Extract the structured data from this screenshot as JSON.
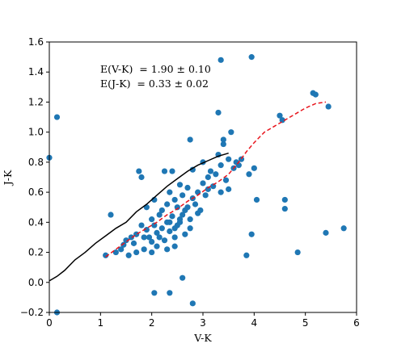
{
  "chart_data": {
    "type": "scatter",
    "xlabel": "V-K",
    "ylabel": "J-K",
    "xlim": [
      0,
      6
    ],
    "ylim": [
      -0.2,
      1.6
    ],
    "xticks": [
      "0",
      "1",
      "2",
      "3",
      "4",
      "5",
      "6"
    ],
    "yticks": [
      "−0.2",
      "0.0",
      "0.2",
      "0.4",
      "0.6",
      "0.8",
      "1.0",
      "1.2",
      "1.4",
      "1.6"
    ],
    "grid": false,
    "annotations": [
      "E(V-K)  = 1.90 ± 0.10",
      "E(J-K)  = 0.33 ± 0.02"
    ],
    "colors": {
      "points": "#1f77b4",
      "solid_line": "#000000",
      "dashed_line": "#e8141c"
    },
    "series": [
      {
        "kind": "points",
        "marker": "circle",
        "points": [
          [
            0.0,
            0.83
          ],
          [
            0.15,
            1.1
          ],
          [
            0.15,
            -0.2
          ],
          [
            1.2,
            0.45
          ],
          [
            1.1,
            0.18
          ],
          [
            1.3,
            0.2
          ],
          [
            1.4,
            0.22
          ],
          [
            1.45,
            0.25
          ],
          [
            1.5,
            0.28
          ],
          [
            1.55,
            0.18
          ],
          [
            1.6,
            0.3
          ],
          [
            1.65,
            0.26
          ],
          [
            1.7,
            0.32
          ],
          [
            1.7,
            0.2
          ],
          [
            1.75,
            0.74
          ],
          [
            1.8,
            0.7
          ],
          [
            1.8,
            0.38
          ],
          [
            1.85,
            0.22
          ],
          [
            1.9,
            0.5
          ],
          [
            1.9,
            0.35
          ],
          [
            1.95,
            0.3
          ],
          [
            2.0,
            0.42
          ],
          [
            2.0,
            0.27
          ],
          [
            2.05,
            0.55
          ],
          [
            2.05,
            0.38
          ],
          [
            2.1,
            0.33
          ],
          [
            2.1,
            0.24
          ],
          [
            2.15,
            0.45
          ],
          [
            2.15,
            0.3
          ],
          [
            2.2,
            0.48
          ],
          [
            2.2,
            0.36
          ],
          [
            2.25,
            0.74
          ],
          [
            2.25,
            0.28
          ],
          [
            2.3,
            0.52
          ],
          [
            2.3,
            0.4
          ],
          [
            2.35,
            0.34
          ],
          [
            2.35,
            0.6
          ],
          [
            2.4,
            0.74
          ],
          [
            2.4,
            0.44
          ],
          [
            2.45,
            0.3
          ],
          [
            2.45,
            0.55
          ],
          [
            2.5,
            0.5
          ],
          [
            2.5,
            0.38
          ],
          [
            2.55,
            0.65
          ],
          [
            2.55,
            0.42
          ],
          [
            2.6,
            0.45
          ],
          [
            2.6,
            0.58
          ],
          [
            2.65,
            0.32
          ],
          [
            2.7,
            0.63
          ],
          [
            2.7,
            0.5
          ],
          [
            2.75,
            0.95
          ],
          [
            2.75,
            0.42
          ],
          [
            2.8,
            0.56
          ],
          [
            2.8,
            0.75
          ],
          [
            2.85,
            0.52
          ],
          [
            2.9,
            0.6
          ],
          [
            2.95,
            0.48
          ],
          [
            3.0,
            0.66
          ],
          [
            3.0,
            0.8
          ],
          [
            3.05,
            0.58
          ],
          [
            3.1,
            0.7
          ],
          [
            3.1,
            0.62
          ],
          [
            3.15,
            0.74
          ],
          [
            3.2,
            0.64
          ],
          [
            3.25,
            0.72
          ],
          [
            3.3,
            1.13
          ],
          [
            3.3,
            0.85
          ],
          [
            3.35,
            0.78
          ],
          [
            3.4,
            0.95
          ],
          [
            3.45,
            0.68
          ],
          [
            3.5,
            0.82
          ],
          [
            3.55,
            1.0
          ],
          [
            3.6,
            0.76
          ],
          [
            3.65,
            0.8
          ],
          [
            3.7,
            0.78
          ],
          [
            3.75,
            0.82
          ],
          [
            3.4,
            0.92
          ],
          [
            3.35,
            0.6
          ],
          [
            3.5,
            0.62
          ],
          [
            3.9,
            0.72
          ],
          [
            3.95,
            0.32
          ],
          [
            4.0,
            0.76
          ],
          [
            4.05,
            0.55
          ],
          [
            3.85,
            0.18
          ],
          [
            3.35,
            1.48
          ],
          [
            3.95,
            1.5
          ],
          [
            4.5,
            1.11
          ],
          [
            4.55,
            1.08
          ],
          [
            4.6,
            0.55
          ],
          [
            4.6,
            0.49
          ],
          [
            4.85,
            0.2
          ],
          [
            5.15,
            1.26
          ],
          [
            5.2,
            1.25
          ],
          [
            5.4,
            0.33
          ],
          [
            5.45,
            1.17
          ],
          [
            5.75,
            0.36
          ],
          [
            2.05,
            -0.07
          ],
          [
            2.35,
            -0.07
          ],
          [
            2.6,
            0.03
          ],
          [
            2.8,
            -0.14
          ],
          [
            2.3,
            0.22
          ],
          [
            2.35,
            0.4
          ],
          [
            2.45,
            0.36
          ],
          [
            2.55,
            0.4
          ],
          [
            2.65,
            0.48
          ],
          [
            2.75,
            0.36
          ],
          [
            2.9,
            0.46
          ],
          [
            2.0,
            0.2
          ],
          [
            1.85,
            0.3
          ],
          [
            2.45,
            0.24
          ]
        ]
      },
      {
        "kind": "line",
        "style": "solid",
        "points": [
          [
            0.0,
            0.01
          ],
          [
            0.15,
            0.04
          ],
          [
            0.3,
            0.08
          ],
          [
            0.5,
            0.15
          ],
          [
            0.7,
            0.2
          ],
          [
            0.9,
            0.26
          ],
          [
            1.1,
            0.31
          ],
          [
            1.3,
            0.36
          ],
          [
            1.5,
            0.4
          ],
          [
            1.7,
            0.47
          ],
          [
            1.9,
            0.52
          ],
          [
            2.1,
            0.58
          ],
          [
            2.3,
            0.64
          ],
          [
            2.5,
            0.69
          ],
          [
            2.7,
            0.74
          ],
          [
            2.9,
            0.78
          ],
          [
            3.1,
            0.81
          ],
          [
            3.3,
            0.84
          ],
          [
            3.5,
            0.86
          ]
        ]
      },
      {
        "kind": "line",
        "style": "dashed",
        "points": [
          [
            1.1,
            0.17
          ],
          [
            1.3,
            0.22
          ],
          [
            1.5,
            0.27
          ],
          [
            1.7,
            0.32
          ],
          [
            1.9,
            0.36
          ],
          [
            2.1,
            0.4
          ],
          [
            2.3,
            0.45
          ],
          [
            2.5,
            0.49
          ],
          [
            2.7,
            0.54
          ],
          [
            2.9,
            0.58
          ],
          [
            3.1,
            0.63
          ],
          [
            3.3,
            0.67
          ],
          [
            3.5,
            0.72
          ],
          [
            3.7,
            0.8
          ],
          [
            3.85,
            0.87
          ],
          [
            4.0,
            0.93
          ],
          [
            4.2,
            1.0
          ],
          [
            4.4,
            1.04
          ],
          [
            4.6,
            1.08
          ],
          [
            4.8,
            1.12
          ],
          [
            5.0,
            1.16
          ],
          [
            5.2,
            1.19
          ],
          [
            5.4,
            1.2
          ]
        ]
      }
    ]
  }
}
